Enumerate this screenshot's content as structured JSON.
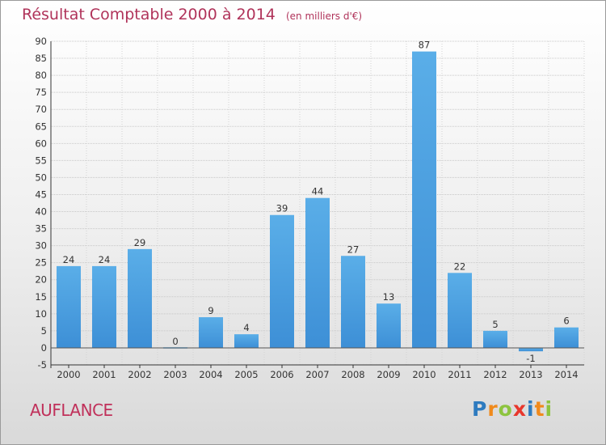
{
  "chart_data": {
    "type": "bar",
    "title": "Résultat Comptable 2000 à 2014",
    "subtitle": "(en milliers d'€)",
    "categories": [
      "2000",
      "2001",
      "2002",
      "2003",
      "2004",
      "2005",
      "2006",
      "2007",
      "2008",
      "2009",
      "2010",
      "2011",
      "2012",
      "2013",
      "2014"
    ],
    "values": [
      24,
      24,
      29,
      0,
      9,
      4,
      39,
      44,
      27,
      13,
      87,
      22,
      5,
      -1,
      6
    ],
    "ylim": [
      -5,
      90
    ],
    "yticks": [
      -5,
      0,
      5,
      10,
      15,
      20,
      25,
      30,
      35,
      40,
      45,
      50,
      55,
      60,
      65,
      70,
      75,
      80,
      85,
      90
    ],
    "xlabel": "",
    "ylabel": "",
    "grid": true,
    "bar_color": "#3d8fd6",
    "bar_color_light": "#5aaee8"
  },
  "footer": {
    "commune": "AUFLANCE",
    "brand_letters": [
      "P",
      "r",
      "o",
      "x",
      "i",
      "t",
      "i"
    ],
    "brand_colors": [
      "#2e7bbf",
      "#f08a1c",
      "#8dc43f",
      "#e8372c",
      "#2e7bbf",
      "#f08a1c",
      "#8dc43f"
    ]
  }
}
